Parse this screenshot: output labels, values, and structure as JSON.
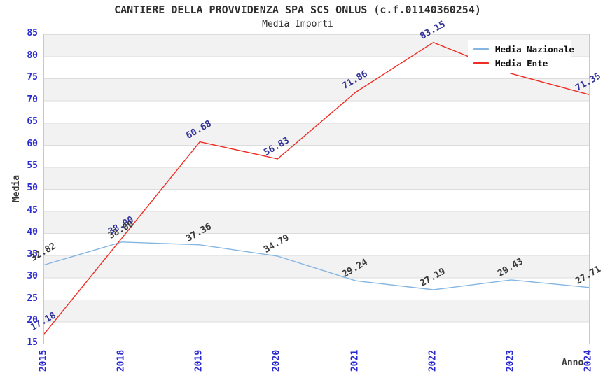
{
  "title": "CANTIERE DELLA PROVVIDENZA SPA SCS ONLUS (c.f.01140360254)",
  "subtitle": "Media Importi",
  "axes": {
    "y_label": "Media",
    "x_label": "Anno",
    "y_ticks": [
      85,
      80,
      75,
      70,
      65,
      60,
      55,
      50,
      45,
      40,
      35,
      30,
      25,
      20,
      15
    ],
    "x_ticks": [
      "2015",
      "2018",
      "2019",
      "2020",
      "2021",
      "2022",
      "2023",
      "2024"
    ]
  },
  "legend": {
    "items": [
      {
        "label": "Media Nazionale",
        "color": "#85b6e2"
      },
      {
        "label": "Media Ente",
        "color": "#ee2e24"
      }
    ]
  },
  "colors": {
    "tick_blue": "#2a2ad0",
    "band_gray": "#f2f2f2",
    "gridline": "#dcdcdc",
    "plot_border": "#c9c9c9",
    "nazionale_line": "#85b6e2",
    "ente_line": "#ee2e24",
    "nazionale_label": "#3a3a3a",
    "ente_label": "#333399"
  },
  "chart_data": {
    "type": "line",
    "title": "Media Importi",
    "xlabel": "Anno",
    "ylabel": "Media",
    "ylim": [
      15,
      85
    ],
    "grid": true,
    "legend_position": "top-right",
    "categories": [
      "2015",
      "2018",
      "2019",
      "2020",
      "2021",
      "2022",
      "2023",
      "2024"
    ],
    "series": [
      {
        "name": "Media Nazionale",
        "color": "#85b6e2",
        "label_color": "#3a3a3a",
        "values": [
          32.82,
          38.0,
          37.36,
          34.79,
          29.24,
          27.19,
          29.43,
          27.71
        ],
        "labels": [
          "32.82",
          "38.00",
          "37.36",
          "34.79",
          "29.24",
          "27.19",
          "29.43",
          "27.71"
        ]
      },
      {
        "name": "Media Ente",
        "color": "#ee2e24",
        "label_color": "#333399",
        "values": [
          17.18,
          38.9,
          60.68,
          56.83,
          71.86,
          83.15,
          76.1,
          71.35
        ],
        "labels": [
          "17.18",
          "38.90",
          "60.68",
          "56.83",
          "71.86",
          "83.15",
          "",
          "71.35"
        ]
      }
    ]
  }
}
